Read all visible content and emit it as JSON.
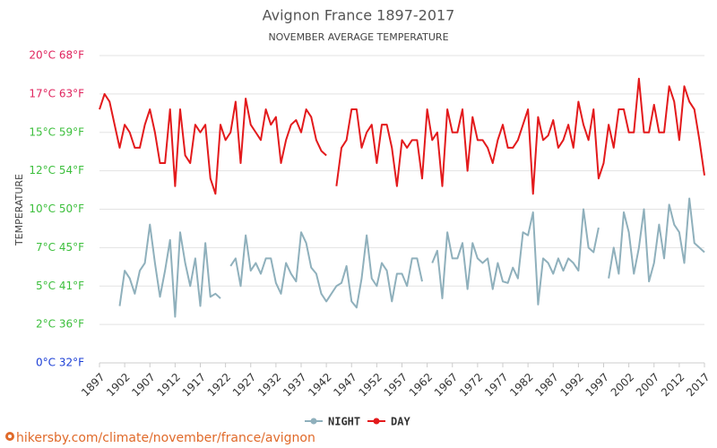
{
  "chart_data": {
    "type": "line",
    "title": "Avignon France 1897-2017",
    "subtitle": "NOVEMBER AVERAGE TEMPERATURE",
    "y_label": "TEMPERATURE",
    "footer": "hikersby.com/climate/november/france/avignon",
    "x": [
      1897,
      1898,
      1899,
      1900,
      1901,
      1902,
      1903,
      1904,
      1905,
      1906,
      1907,
      1908,
      1909,
      1910,
      1911,
      1912,
      1913,
      1914,
      1915,
      1916,
      1917,
      1918,
      1919,
      1920,
      1921,
      1922,
      1923,
      1924,
      1925,
      1926,
      1927,
      1928,
      1929,
      1930,
      1931,
      1932,
      1933,
      1934,
      1935,
      1936,
      1937,
      1938,
      1939,
      1940,
      1941,
      1942,
      1943,
      1944,
      1945,
      1946,
      1947,
      1948,
      1949,
      1950,
      1951,
      1952,
      1953,
      1954,
      1955,
      1956,
      1957,
      1958,
      1959,
      1960,
      1961,
      1962,
      1963,
      1964,
      1965,
      1966,
      1967,
      1968,
      1969,
      1970,
      1971,
      1972,
      1973,
      1974,
      1975,
      1976,
      1977,
      1978,
      1979,
      1980,
      1981,
      1982,
      1983,
      1984,
      1985,
      1986,
      1987,
      1988,
      1989,
      1990,
      1991,
      1992,
      1993,
      1994,
      1995,
      1996,
      1997,
      1998,
      1999,
      2000,
      2001,
      2002,
      2003,
      2004,
      2005,
      2006,
      2007,
      2008,
      2009,
      2010,
      2011,
      2012,
      2013,
      2014,
      2015,
      2016,
      2017
    ],
    "xlim": [
      1897,
      2017
    ],
    "xticks": [
      1897,
      1902,
      1907,
      1912,
      1917,
      1922,
      1927,
      1932,
      1937,
      1942,
      1947,
      1952,
      1957,
      1962,
      1967,
      1972,
      1977,
      1982,
      1987,
      1992,
      1997,
      2002,
      2007,
      2012,
      2017
    ],
    "ylim": [
      0,
      20
    ],
    "yticks": [
      {
        "value": 0,
        "label": "0°C 32°F"
      },
      {
        "value": 2.5,
        "label": "2°C 36°F"
      },
      {
        "value": 5,
        "label": "5°C 41°F"
      },
      {
        "value": 7.5,
        "label": "7°C 45°F"
      },
      {
        "value": 10,
        "label": "10°C 50°F"
      },
      {
        "value": 12.5,
        "label": "12°C 54°F"
      },
      {
        "value": 15,
        "label": "15°C 59°F"
      },
      {
        "value": 17.5,
        "label": "17°C 63°F"
      },
      {
        "value": 20,
        "label": "20°C 68°F"
      }
    ],
    "ytick_colors": [
      "#1c3fd6",
      "#3cbf3c",
      "#3cbf3c",
      "#3cbf3c",
      "#3cbf3c",
      "#3cbf3c",
      "#3cbf3c",
      "#e0245e",
      "#e0245e"
    ],
    "grid": true,
    "legend": "bottom",
    "series": [
      {
        "name": "NIGHT",
        "color": "#8fb0bc",
        "values": [
          null,
          null,
          null,
          null,
          3.7,
          6,
          5.5,
          4.5,
          6,
          6.5,
          9,
          6.5,
          4.3,
          6,
          8,
          3,
          8.5,
          6.5,
          5,
          6.8,
          3.7,
          7.8,
          4.3,
          4.5,
          4.2,
          null,
          6.3,
          6.8,
          5,
          8.3,
          6,
          6.5,
          5.8,
          6.8,
          6.8,
          5.2,
          4.5,
          6.5,
          5.8,
          5.3,
          8.5,
          7.8,
          6.2,
          5.8,
          4.5,
          4,
          4.5,
          5,
          5.2,
          6.3,
          4,
          3.6,
          5.5,
          8.3,
          5.5,
          5,
          6.5,
          6,
          4,
          5.8,
          5.8,
          5,
          6.8,
          6.8,
          5.3,
          null,
          6.5,
          7.3,
          4.2,
          8.5,
          6.8,
          6.8,
          7.8,
          4.8,
          7.8,
          6.8,
          6.5,
          6.8,
          4.8,
          6.5,
          5.3,
          5.2,
          6.2,
          5.5,
          8.5,
          8.3,
          9.8,
          3.8,
          6.8,
          6.5,
          5.8,
          6.8,
          6,
          6.8,
          6.5,
          6,
          10,
          7.5,
          7.2,
          8.8,
          null,
          5.5,
          7.5,
          5.8,
          9.8,
          8.5,
          5.8,
          7.5,
          10,
          5.3,
          6.5,
          9,
          6.8,
          10.3,
          9,
          8.5,
          6.5,
          10.7,
          7.8,
          7.5,
          7.2
        ]
      },
      {
        "name": "DAY",
        "color": "#e31a1c",
        "values": [
          16.5,
          17.5,
          17,
          15.5,
          14,
          15.5,
          15,
          14,
          14,
          15.5,
          16.5,
          15,
          13,
          13,
          16.5,
          11.5,
          16.5,
          13.5,
          13,
          15.5,
          15,
          15.5,
          12,
          11,
          15.5,
          14.5,
          15,
          17,
          13,
          17.2,
          15.5,
          15,
          14.5,
          16.5,
          15.5,
          16,
          13,
          14.5,
          15.5,
          15.8,
          15,
          16.5,
          16,
          14.5,
          13.8,
          13.5,
          null,
          11.5,
          14,
          14.5,
          16.5,
          16.5,
          14,
          15,
          15.5,
          13,
          15.5,
          15.5,
          14,
          11.5,
          14.5,
          14,
          14.5,
          14.5,
          12,
          16.5,
          14.5,
          15,
          11.5,
          16.5,
          15,
          15,
          16.5,
          12.5,
          16,
          14.5,
          14.5,
          14,
          13,
          14.5,
          15.5,
          14,
          14,
          14.5,
          15.5,
          16.5,
          11,
          16,
          14.5,
          14.8,
          15.8,
          14,
          14.5,
          15.5,
          14,
          17,
          15.5,
          14.5,
          16.5,
          12,
          13,
          15.5,
          14,
          16.5,
          16.5,
          15,
          15,
          18.5,
          15,
          15,
          16.8,
          15,
          15,
          18,
          17,
          14.5,
          18,
          17,
          16.5,
          14.5,
          12.2
        ]
      }
    ]
  }
}
